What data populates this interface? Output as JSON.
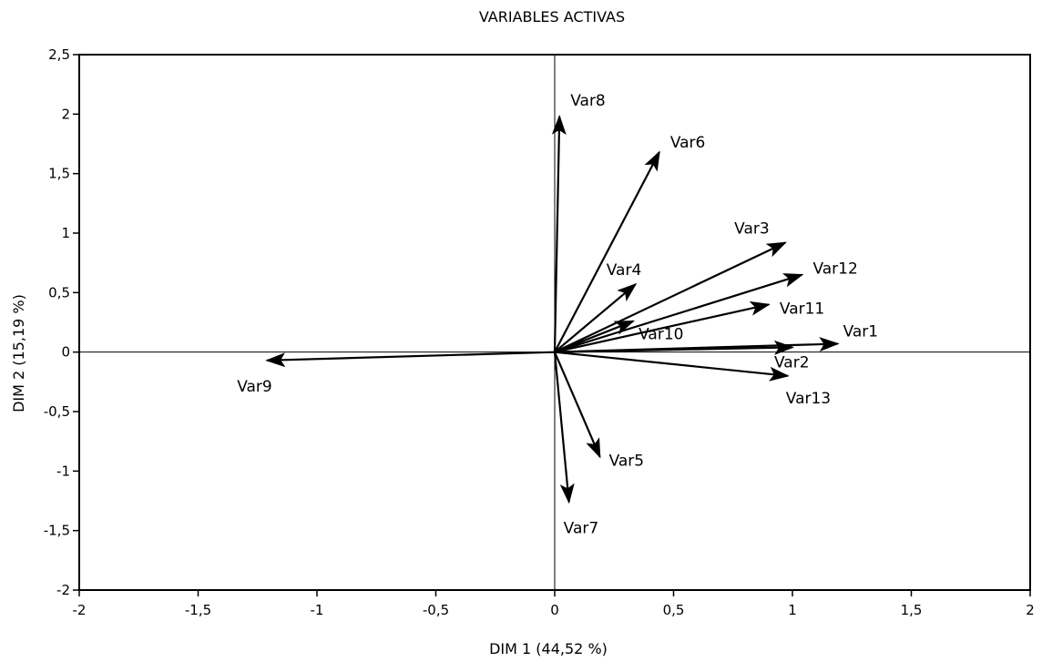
{
  "chart_data": {
    "type": "scatter",
    "subtype": "pca-variable-vectors",
    "title": "VARIABLES ACTIVAS",
    "xlabel": "DIM 1 (44,52 %)",
    "ylabel": "DIM 2 (15,19 %)",
    "xlim": [
      -2,
      2
    ],
    "ylim": [
      -2,
      2.5
    ],
    "xticks": [
      -2,
      -1.5,
      -1,
      -0.5,
      0,
      0.5,
      1,
      1.5,
      2
    ],
    "xtick_labels": [
      "-2",
      "-1,5",
      "-1",
      "-0,5",
      "0",
      "0,5",
      "1",
      "1,5",
      "2"
    ],
    "yticks": [
      -2,
      -1.5,
      -1,
      -0.5,
      0,
      0.5,
      1,
      1.5,
      2,
      2.5
    ],
    "ytick_labels": [
      "-2",
      "-1,5",
      "-1",
      "-0,5",
      "0",
      "0,5",
      "1",
      "1,5",
      "2",
      "2,5"
    ],
    "zero_lines": true,
    "grid": false,
    "legend": "none",
    "origin": [
      0,
      0
    ],
    "series": [
      {
        "label": "Var1",
        "x": 1.19,
        "y": 0.07
      },
      {
        "label": "Var2",
        "x": 1.0,
        "y": 0.04
      },
      {
        "label": "Var3",
        "x": 0.97,
        "y": 0.92
      },
      {
        "label": "Var4",
        "x": 0.34,
        "y": 0.57
      },
      {
        "label": "Var5",
        "x": 0.19,
        "y": -0.88
      },
      {
        "label": "Var6",
        "x": 0.44,
        "y": 1.68
      },
      {
        "label": "Var7",
        "x": 0.06,
        "y": -1.26
      },
      {
        "label": "Var8",
        "x": 0.02,
        "y": 1.98
      },
      {
        "label": "Var9",
        "x": -1.21,
        "y": -0.07
      },
      {
        "label": "Var10",
        "x": 0.33,
        "y": 0.26
      },
      {
        "label": "Var11",
        "x": 0.9,
        "y": 0.4
      },
      {
        "label": "Var12",
        "x": 1.04,
        "y": 0.65
      },
      {
        "label": "Var13",
        "x": 0.98,
        "y": -0.2
      }
    ]
  }
}
